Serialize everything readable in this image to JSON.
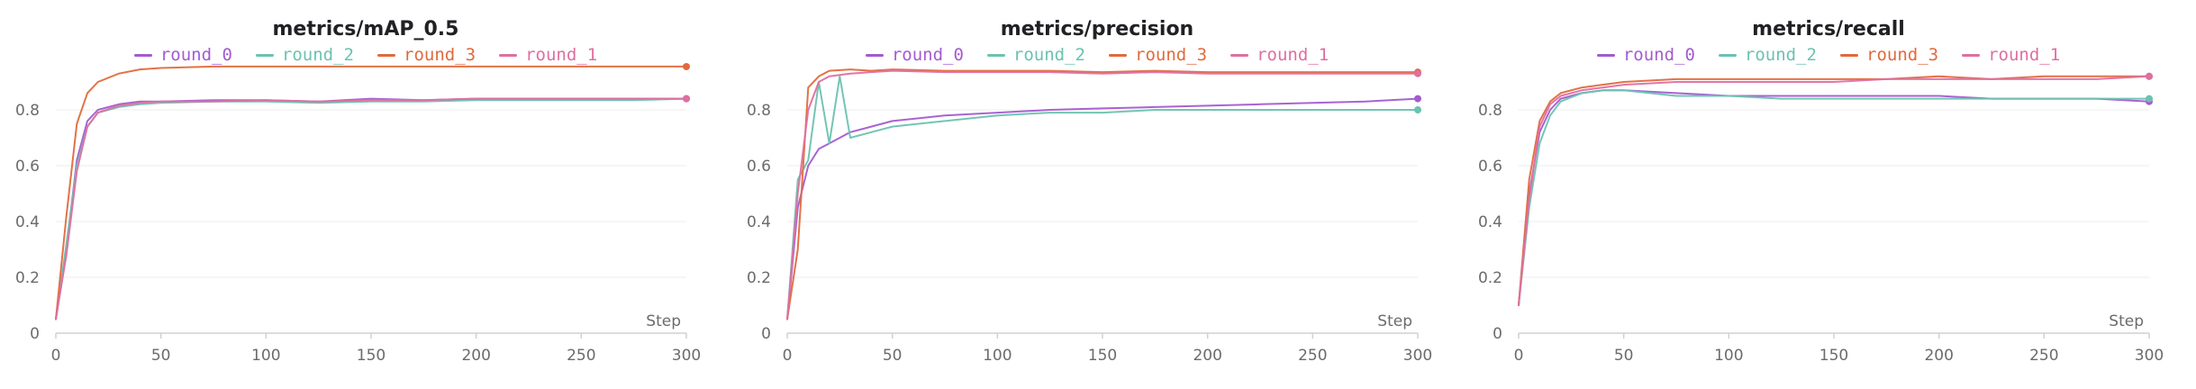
{
  "colors": {
    "round_0": "#a35bd1",
    "round_2": "#6cc2b1",
    "round_3": "#e06a3d",
    "round_1": "#df6fa0",
    "grid": "#ececec",
    "axis": "#d0d0d0"
  },
  "chart_data": [
    {
      "type": "line",
      "title": "metrics/mAP_0.5",
      "xlabel": "Step",
      "ylabel": "",
      "xlim": [
        0,
        300
      ],
      "ylim": [
        0,
        1
      ],
      "xticks": [
        "0",
        "50",
        "100",
        "150",
        "200",
        "250",
        "300"
      ],
      "yticks": [
        "0",
        "0.2",
        "0.4",
        "0.6",
        "0.8"
      ],
      "grid": true,
      "legend_position": "top-center",
      "series": [
        {
          "name": "round_0",
          "color_key": "round_0",
          "x": [
            0,
            5,
            10,
            15,
            20,
            30,
            40,
            50,
            75,
            100,
            125,
            150,
            175,
            200,
            225,
            250,
            275,
            300
          ],
          "y": [
            0.05,
            0.3,
            0.62,
            0.76,
            0.8,
            0.82,
            0.83,
            0.83,
            0.835,
            0.835,
            0.83,
            0.84,
            0.835,
            0.84,
            0.84,
            0.84,
            0.84,
            0.84
          ]
        },
        {
          "name": "round_2",
          "color_key": "round_2",
          "x": [
            0,
            5,
            10,
            15,
            20,
            30,
            40,
            50,
            75,
            100,
            125,
            150,
            175,
            200,
            225,
            250,
            275,
            300
          ],
          "y": [
            0.05,
            0.32,
            0.6,
            0.74,
            0.79,
            0.81,
            0.82,
            0.825,
            0.83,
            0.83,
            0.825,
            0.83,
            0.83,
            0.835,
            0.835,
            0.835,
            0.835,
            0.84
          ]
        },
        {
          "name": "round_3",
          "color_key": "round_3",
          "x": [
            0,
            5,
            10,
            15,
            20,
            30,
            40,
            50,
            75,
            100,
            125,
            150,
            175,
            200,
            225,
            250,
            275,
            300
          ],
          "y": [
            0.05,
            0.42,
            0.75,
            0.86,
            0.9,
            0.93,
            0.945,
            0.95,
            0.955,
            0.955,
            0.955,
            0.955,
            0.955,
            0.955,
            0.955,
            0.955,
            0.955,
            0.955
          ]
        },
        {
          "name": "round_1",
          "color_key": "round_1",
          "x": [
            0,
            5,
            10,
            15,
            20,
            30,
            40,
            50,
            75,
            100,
            125,
            150,
            175,
            200,
            225,
            250,
            275,
            300
          ],
          "y": [
            0.05,
            0.28,
            0.58,
            0.74,
            0.79,
            0.815,
            0.825,
            0.83,
            0.83,
            0.835,
            0.83,
            0.835,
            0.835,
            0.84,
            0.84,
            0.84,
            0.84,
            0.84
          ]
        }
      ]
    },
    {
      "type": "line",
      "title": "metrics/precision",
      "xlabel": "Step",
      "ylabel": "",
      "xlim": [
        0,
        300
      ],
      "ylim": [
        0,
        1
      ],
      "xticks": [
        "0",
        "50",
        "100",
        "150",
        "200",
        "250",
        "300"
      ],
      "yticks": [
        "0",
        "0.2",
        "0.4",
        "0.6",
        "0.8"
      ],
      "grid": true,
      "legend_position": "top-center",
      "series": [
        {
          "name": "round_0",
          "color_key": "round_0",
          "x": [
            0,
            5,
            10,
            15,
            20,
            30,
            40,
            50,
            75,
            100,
            125,
            150,
            175,
            200,
            225,
            250,
            275,
            300
          ],
          "y": [
            0.05,
            0.45,
            0.6,
            0.66,
            0.68,
            0.72,
            0.74,
            0.76,
            0.78,
            0.79,
            0.8,
            0.805,
            0.81,
            0.815,
            0.82,
            0.825,
            0.83,
            0.84
          ]
        },
        {
          "name": "round_2",
          "color_key": "round_2",
          "x": [
            0,
            5,
            10,
            15,
            20,
            25,
            30,
            40,
            50,
            75,
            100,
            125,
            150,
            175,
            200,
            225,
            250,
            275,
            300
          ],
          "y": [
            0.05,
            0.55,
            0.62,
            0.9,
            0.68,
            0.92,
            0.7,
            0.72,
            0.74,
            0.76,
            0.78,
            0.79,
            0.79,
            0.8,
            0.8,
            0.8,
            0.8,
            0.8,
            0.8
          ]
        },
        {
          "name": "round_3",
          "color_key": "round_3",
          "x": [
            0,
            5,
            10,
            15,
            20,
            30,
            40,
            50,
            75,
            100,
            125,
            150,
            175,
            200,
            225,
            250,
            275,
            300
          ],
          "y": [
            0.05,
            0.3,
            0.88,
            0.92,
            0.94,
            0.945,
            0.94,
            0.945,
            0.94,
            0.94,
            0.94,
            0.935,
            0.94,
            0.935,
            0.935,
            0.935,
            0.935,
            0.935
          ]
        },
        {
          "name": "round_1",
          "color_key": "round_1",
          "x": [
            0,
            5,
            10,
            15,
            20,
            30,
            40,
            50,
            75,
            100,
            125,
            150,
            175,
            200,
            225,
            250,
            275,
            300
          ],
          "y": [
            0.05,
            0.5,
            0.8,
            0.9,
            0.92,
            0.93,
            0.935,
            0.94,
            0.935,
            0.935,
            0.935,
            0.93,
            0.935,
            0.93,
            0.93,
            0.93,
            0.93,
            0.93
          ]
        }
      ]
    },
    {
      "type": "line",
      "title": "metrics/recall",
      "xlabel": "Step",
      "ylabel": "",
      "xlim": [
        0,
        300
      ],
      "ylim": [
        0,
        1
      ],
      "xticks": [
        "0",
        "50",
        "100",
        "150",
        "200",
        "250",
        "300"
      ],
      "yticks": [
        "0",
        "0.2",
        "0.4",
        "0.6",
        "0.8"
      ],
      "grid": true,
      "legend_position": "top-center",
      "series": [
        {
          "name": "round_0",
          "color_key": "round_0",
          "x": [
            0,
            5,
            10,
            15,
            20,
            30,
            40,
            50,
            75,
            100,
            125,
            150,
            175,
            200,
            225,
            250,
            275,
            300
          ],
          "y": [
            0.1,
            0.5,
            0.72,
            0.8,
            0.84,
            0.86,
            0.87,
            0.87,
            0.86,
            0.85,
            0.85,
            0.85,
            0.85,
            0.85,
            0.84,
            0.84,
            0.84,
            0.83
          ]
        },
        {
          "name": "round_2",
          "color_key": "round_2",
          "x": [
            0,
            5,
            10,
            15,
            20,
            30,
            40,
            50,
            75,
            100,
            125,
            150,
            175,
            200,
            225,
            250,
            275,
            300
          ],
          "y": [
            0.1,
            0.45,
            0.68,
            0.78,
            0.83,
            0.86,
            0.87,
            0.87,
            0.85,
            0.85,
            0.84,
            0.84,
            0.84,
            0.84,
            0.84,
            0.84,
            0.84,
            0.84
          ]
        },
        {
          "name": "round_3",
          "color_key": "round_3",
          "x": [
            0,
            5,
            10,
            15,
            20,
            30,
            40,
            50,
            75,
            100,
            125,
            150,
            175,
            200,
            225,
            250,
            275,
            300
          ],
          "y": [
            0.1,
            0.55,
            0.76,
            0.83,
            0.86,
            0.88,
            0.89,
            0.9,
            0.91,
            0.91,
            0.91,
            0.91,
            0.91,
            0.92,
            0.91,
            0.92,
            0.92,
            0.92
          ]
        },
        {
          "name": "round_1",
          "color_key": "round_1",
          "x": [
            0,
            5,
            10,
            15,
            20,
            30,
            40,
            50,
            75,
            100,
            125,
            150,
            175,
            200,
            225,
            250,
            275,
            300
          ],
          "y": [
            0.1,
            0.48,
            0.74,
            0.82,
            0.85,
            0.87,
            0.88,
            0.89,
            0.9,
            0.9,
            0.9,
            0.9,
            0.91,
            0.91,
            0.91,
            0.91,
            0.91,
            0.92
          ]
        }
      ]
    }
  ]
}
